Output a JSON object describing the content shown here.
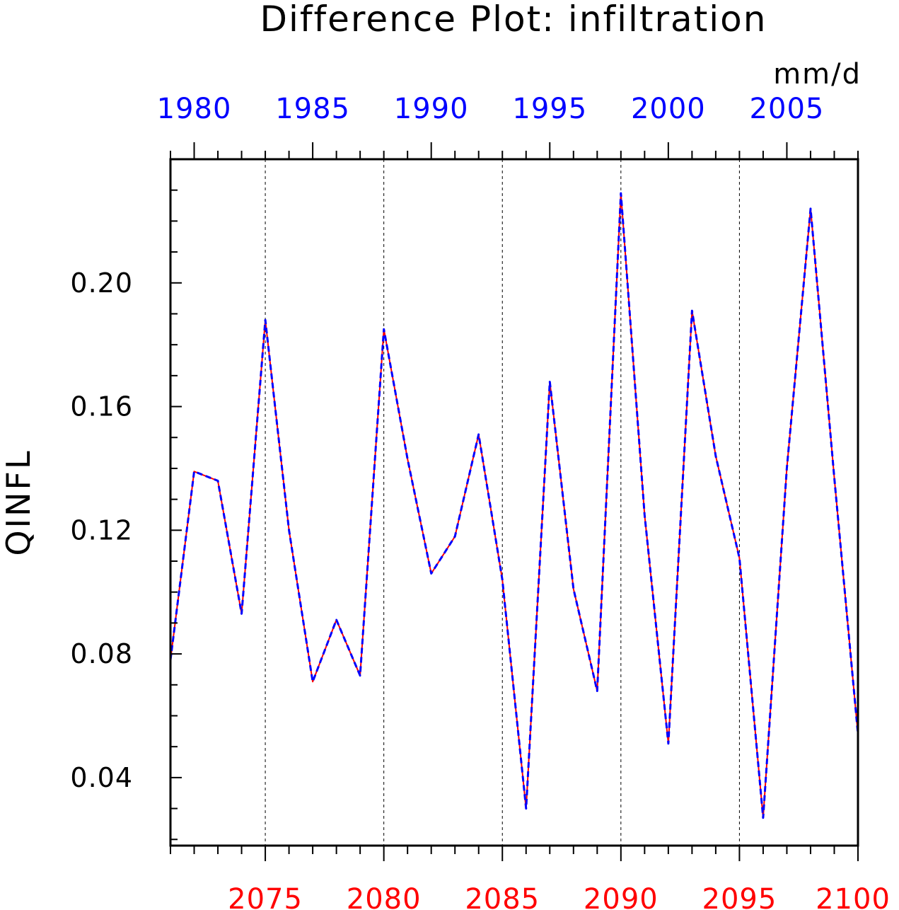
{
  "chart_data": {
    "type": "line",
    "title": "Difference Plot: infiltration",
    "units": "mm/d",
    "ylabel": "QINFL",
    "ylim": [
      0.018,
      0.24
    ],
    "yticks": [
      0.04,
      0.08,
      0.12,
      0.16,
      0.2
    ],
    "ytick_labels": [
      "0.04",
      "0.08",
      "0.12",
      "0.16",
      "0.20"
    ],
    "x_bottom": {
      "range": [
        2071,
        2100
      ],
      "ticks": [
        2075,
        2080,
        2085,
        2090,
        2095,
        2100
      ],
      "tick_labels": [
        "2075",
        "2080",
        "2085",
        "2090",
        "2095",
        "2100"
      ],
      "color": "#ff0000"
    },
    "x_top": {
      "range": [
        1979,
        2008
      ],
      "ticks": [
        1980,
        1985,
        1990,
        1995,
        2000,
        2005
      ],
      "tick_labels": [
        "1980",
        "1985",
        "1990",
        "1995",
        "2000",
        "2005"
      ],
      "color": "#0000ff"
    },
    "grid": "vertical dashed at major ticks",
    "series": [
      {
        "color": "#ff0000",
        "style": "solid",
        "x": [
          2071,
          2072,
          2073,
          2074,
          2075,
          2076,
          2077,
          2078,
          2079,
          2080,
          2081,
          2082,
          2083,
          2084,
          2085,
          2086,
          2087,
          2088,
          2089,
          2090,
          2091,
          2092,
          2093,
          2094,
          2095,
          2096,
          2097,
          2098,
          2099,
          2100
        ],
        "values": [
          0.078,
          0.139,
          0.136,
          0.093,
          0.188,
          0.12,
          0.071,
          0.091,
          0.073,
          0.185,
          0.143,
          0.106,
          0.118,
          0.151,
          0.104,
          0.03,
          0.168,
          0.101,
          0.068,
          0.229,
          0.125,
          0.051,
          0.191,
          0.144,
          0.111,
          0.027,
          0.14,
          0.224,
          0.137,
          0.054
        ]
      },
      {
        "color": "#0000ff",
        "style": "dashed",
        "x": [
          2071,
          2072,
          2073,
          2074,
          2075,
          2076,
          2077,
          2078,
          2079,
          2080,
          2081,
          2082,
          2083,
          2084,
          2085,
          2086,
          2087,
          2088,
          2089,
          2090,
          2091,
          2092,
          2093,
          2094,
          2095,
          2096,
          2097,
          2098,
          2099,
          2100
        ],
        "values": [
          0.078,
          0.139,
          0.136,
          0.093,
          0.188,
          0.12,
          0.071,
          0.091,
          0.073,
          0.185,
          0.143,
          0.106,
          0.118,
          0.151,
          0.104,
          0.03,
          0.168,
          0.101,
          0.068,
          0.229,
          0.125,
          0.051,
          0.191,
          0.144,
          0.111,
          0.027,
          0.14,
          0.224,
          0.137,
          0.054
        ]
      }
    ]
  }
}
